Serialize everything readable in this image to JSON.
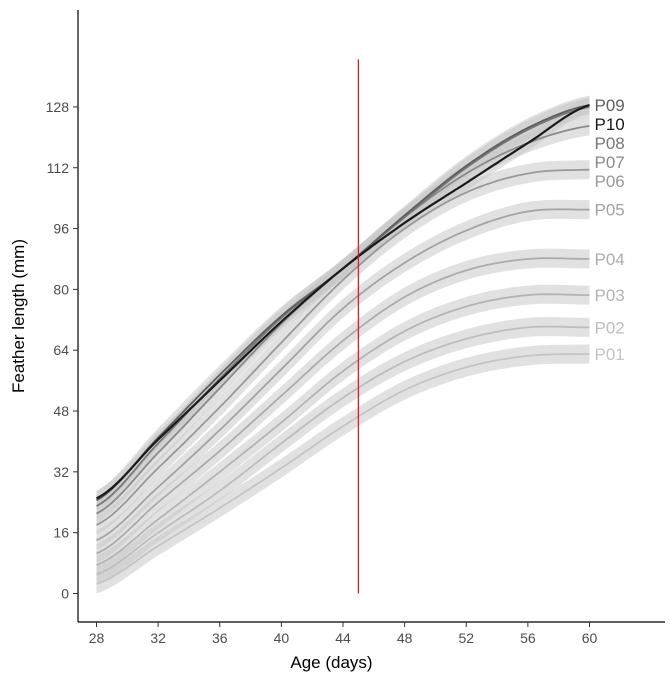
{
  "chart_data": {
    "type": "line",
    "title": "",
    "xlabel": "Age (days)",
    "ylabel": "Feather length (mm)",
    "xlim": [
      26.8,
      64.9
    ],
    "ylim": [
      -7.5,
      153.5
    ],
    "xticks": [
      28,
      32,
      36,
      40,
      44,
      48,
      52,
      56,
      60
    ],
    "yticks": [
      0,
      16,
      32,
      48,
      64,
      80,
      96,
      112,
      128
    ],
    "grid": false,
    "legend": "none",
    "reference_line": {
      "x": 45,
      "color": "#e41a1c"
    },
    "series": [
      {
        "name": "P01",
        "color": "#c4c4c4",
        "band": 2.5,
        "x": [
          28,
          32,
          36,
          40,
          44,
          48,
          52,
          56,
          60
        ],
        "y": [
          2.5,
          12.5,
          22.5,
          33.0,
          44.0,
          53.5,
          59.5,
          62.5,
          63.0
        ]
      },
      {
        "name": "P02",
        "color": "#bdbdbd",
        "band": 2.5,
        "x": [
          28,
          32,
          36,
          40,
          44,
          48,
          52,
          56,
          60
        ],
        "y": [
          5.0,
          16.0,
          27.0,
          39.5,
          51.5,
          61.0,
          67.0,
          70.0,
          70.0
        ]
      },
      {
        "name": "P03",
        "color": "#b4b4b4",
        "band": 2.5,
        "x": [
          28,
          32,
          36,
          40,
          44,
          48,
          52,
          56,
          60
        ],
        "y": [
          7.5,
          19.5,
          32.0,
          45.0,
          58.5,
          69.0,
          75.5,
          78.5,
          78.5
        ]
      },
      {
        "name": "P04",
        "color": "#acacac",
        "band": 2.5,
        "x": [
          28,
          32,
          36,
          40,
          44,
          48,
          52,
          56,
          60
        ],
        "y": [
          10.5,
          24.0,
          37.5,
          52.0,
          66.5,
          78.0,
          85.0,
          88.0,
          88.0
        ]
      },
      {
        "name": "P05",
        "color": "#a3a3a3",
        "band": 2.5,
        "x": [
          28,
          32,
          36,
          40,
          44,
          48,
          52,
          56,
          60
        ],
        "y": [
          14.0,
          28.0,
          43.0,
          59.0,
          75.0,
          87.0,
          95.5,
          100.5,
          101.0
        ]
      },
      {
        "name": "P06",
        "color": "#999999",
        "band": 2.5,
        "x": [
          28,
          32,
          36,
          40,
          44,
          48,
          52,
          56,
          60
        ],
        "y": [
          18.0,
          33.0,
          49.0,
          66.0,
          82.5,
          96.0,
          105.5,
          110.5,
          111.5
        ]
      },
      {
        "name": "P07",
        "color": "#8a8a8a",
        "band": 2.5,
        "x": [
          28,
          32,
          36,
          40,
          44,
          48,
          52,
          56,
          60
        ],
        "y": [
          21.0,
          37.0,
          54.0,
          71.0,
          85.5,
          99.0,
          110.5,
          118.5,
          123.0
        ]
      },
      {
        "name": "P08",
        "color": "#777777",
        "band": 2.5,
        "x": [
          28,
          32,
          36,
          40,
          44,
          48,
          52,
          56,
          60
        ],
        "y": [
          23.0,
          39.5,
          56.5,
          72.5,
          85.5,
          99.0,
          112.0,
          122.0,
          128.0
        ]
      },
      {
        "name": "P09",
        "color": "#5f5f5f",
        "band": 2.5,
        "x": [
          28,
          32,
          36,
          40,
          44,
          48,
          52,
          56,
          60
        ],
        "y": [
          24.5,
          41.0,
          57.5,
          73.0,
          85.5,
          99.5,
          112.5,
          122.5,
          128.5
        ]
      },
      {
        "name": "P10",
        "color": "#1a1a1a",
        "band": 2.0,
        "x": [
          28,
          32,
          36,
          40,
          44,
          48,
          52,
          56,
          60
        ],
        "y": [
          25.0,
          40.5,
          56.0,
          71.5,
          85.5,
          97.5,
          108.0,
          118.5,
          128.5
        ]
      }
    ]
  }
}
